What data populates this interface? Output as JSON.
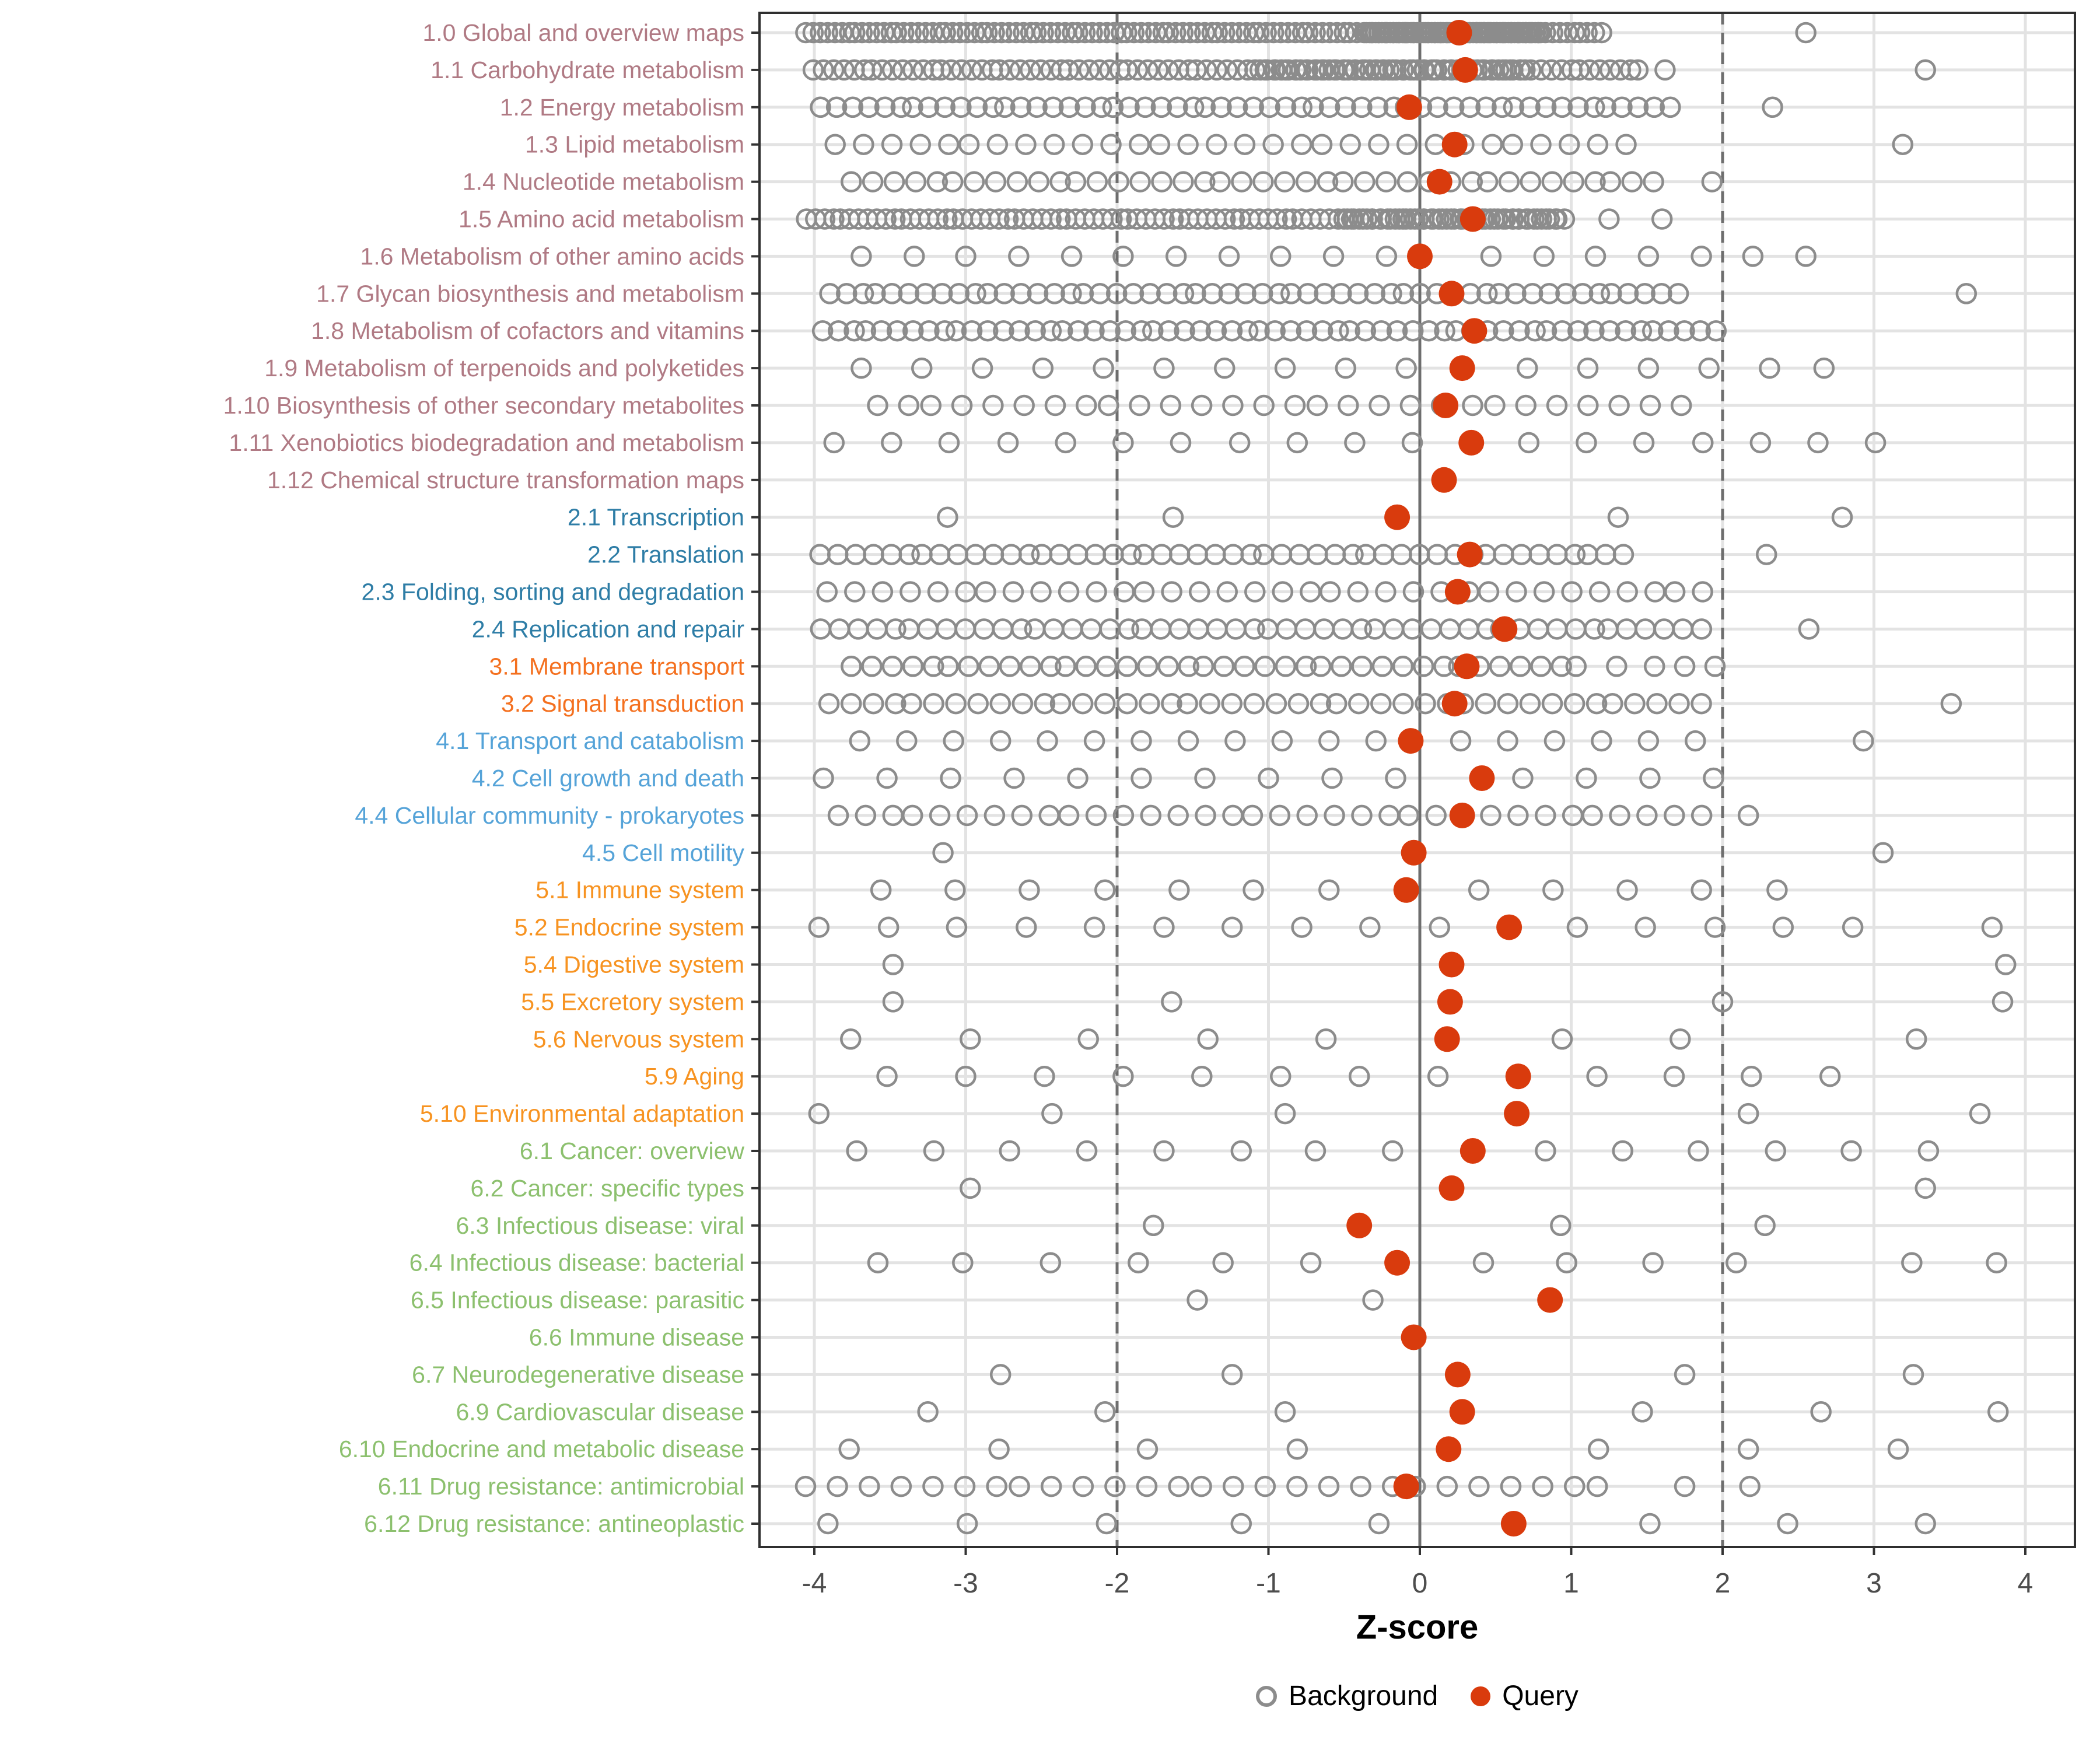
{
  "chart_data": {
    "type": "scatter",
    "title": "",
    "xlabel": "Z-score",
    "ylabel": "",
    "xlim": [
      -4.36,
      4.33
    ],
    "x_ticks": [
      -4,
      -3,
      -2,
      -1,
      0,
      1,
      2,
      3,
      4
    ],
    "grid": "major vertical gridlines at integer z-scores, light horizontal line per category row",
    "legend_position": "bottom",
    "reference_lines": {
      "solid": [
        0
      ],
      "dashed": [
        -2,
        2
      ]
    },
    "colors": {
      "query": "#D93B0D",
      "background_stroke": "#8C8C8C",
      "grid": "#E3E3E3",
      "zero_line": "#6E6E6E",
      "dashed_line": "#6E6E6E",
      "panel_border": "#2F2F2F",
      "tick_mark": "#333333",
      "tick_label": "#4D4D4D",
      "group1": "#B07A84",
      "group2": "#2E7DA6",
      "group3": "#F4701F",
      "group4": "#55A3D8",
      "group5": "#F79321",
      "group6": "#8CC06E"
    },
    "legend": {
      "items": [
        {
          "label": "Background",
          "marker": "open-circle",
          "color": "#8C8C8C"
        },
        {
          "label": "Query",
          "marker": "filled-circle",
          "color": "#D93B0D"
        }
      ]
    },
    "rows": [
      {
        "label": "1.0 Global and overview maps",
        "group": "group1",
        "query": 0.26,
        "bg_spans": [
          [
            -4.05,
            1.2,
            115
          ],
          [
            -0.35,
            0.8,
            60
          ]
        ],
        "bg_points": [
          2.55
        ]
      },
      {
        "label": "1.1 Carbohydrate metabolism",
        "group": "group1",
        "query": 0.3,
        "bg_spans": [
          [
            -4.0,
            1.45,
            85
          ],
          [
            -1.05,
            0.7,
            40
          ]
        ],
        "bg_points": [
          1.62,
          3.34
        ]
      },
      {
        "label": "1.2 Energy metabolism",
        "group": "group1",
        "query": -0.07,
        "bg_spans": [
          [
            -3.95,
            1.65,
            56
          ]
        ],
        "bg_points": [
          2.33
        ]
      },
      {
        "label": "1.3 Lipid metabolism",
        "group": "group1",
        "query": 0.23,
        "bg_spans": [
          [
            -3.85,
            1.35,
            30
          ]
        ],
        "bg_points": [
          3.19
        ]
      },
      {
        "label": "1.4 Nucleotide metabolism",
        "group": "group1",
        "query": 0.13,
        "bg_spans": [
          [
            -3.75,
            1.55,
            40
          ]
        ],
        "bg_points": [
          1.93
        ]
      },
      {
        "label": "1.5 Amino acid metabolism",
        "group": "group1",
        "query": 0.35,
        "bg_spans": [
          [
            -4.05,
            0.95,
            88
          ],
          [
            -0.5,
            0.9,
            30
          ]
        ],
        "bg_points": [
          1.25,
          1.6
        ]
      },
      {
        "label": "1.6 Metabolism of other amino acids",
        "group": "group1",
        "query": 0.0,
        "bg_spans": [],
        "bg_points": [
          -3.69,
          -3.34,
          -3.0,
          -2.65,
          -2.3,
          -1.96,
          -1.61,
          -1.26,
          -0.92,
          -0.57,
          -0.22,
          0.47,
          0.82,
          1.16,
          1.51,
          1.86,
          2.2,
          2.55
        ]
      },
      {
        "label": "1.7 Glycan biosynthesis and metabolism",
        "group": "group1",
        "query": 0.21,
        "bg_spans": [
          [
            -3.9,
            1.7,
            54
          ]
        ],
        "bg_points": [
          3.61
        ]
      },
      {
        "label": "1.8 Metabolism of cofactors and vitamins",
        "group": "group1",
        "query": 0.36,
        "bg_spans": [
          [
            -3.95,
            1.95,
            60
          ]
        ],
        "bg_points": []
      },
      {
        "label": "1.9 Metabolism of terpenoids and polyketides",
        "group": "group1",
        "query": 0.28,
        "bg_spans": [],
        "bg_points": [
          -3.69,
          -3.29,
          -2.89,
          -2.49,
          -2.09,
          -1.69,
          -1.29,
          -0.89,
          -0.49,
          -0.09,
          0.71,
          1.11,
          1.51,
          1.91,
          2.31,
          2.67
        ]
      },
      {
        "label": "1.10 Biosynthesis of other secondary metabolites",
        "group": "group1",
        "query": 0.17,
        "bg_spans": [
          [
            -3.6,
            1.7,
            28
          ]
        ],
        "bg_points": []
      },
      {
        "label": "1.11 Xenobiotics biodegradation and metabolism",
        "group": "group1",
        "query": 0.34,
        "bg_spans": [],
        "bg_points": [
          -3.87,
          -3.49,
          -3.11,
          -2.72,
          -2.34,
          -1.96,
          -1.58,
          -1.19,
          -0.81,
          -0.43,
          -0.05,
          0.72,
          1.1,
          1.48,
          1.87,
          2.25,
          2.63,
          3.01
        ]
      },
      {
        "label": "1.12 Chemical structure transformation maps",
        "group": "group1",
        "query": 0.16,
        "bg_spans": [],
        "bg_points": []
      },
      {
        "label": "2.1 Transcription",
        "group": "group2",
        "query": -0.15,
        "bg_spans": [],
        "bg_points": [
          -3.12,
          -1.63,
          1.31,
          2.79
        ]
      },
      {
        "label": "2.2 Translation",
        "group": "group2",
        "query": 0.33,
        "bg_spans": [
          [
            -3.95,
            1.35,
            48
          ]
        ],
        "bg_points": [
          2.29
        ]
      },
      {
        "label": "2.3 Folding, sorting and degradation",
        "group": "group2",
        "query": 0.25,
        "bg_spans": [
          [
            -3.9,
            1.88,
            34
          ]
        ],
        "bg_points": []
      },
      {
        "label": "2.4 Replication and repair",
        "group": "group2",
        "query": 0.56,
        "bg_spans": [
          [
            -3.95,
            1.85,
            50
          ]
        ],
        "bg_points": [
          2.57
        ]
      },
      {
        "label": "3.1 Membrane transport",
        "group": "group3",
        "query": 0.31,
        "bg_spans": [
          [
            -3.75,
            1.05,
            38
          ]
        ],
        "bg_points": [
          1.3,
          1.55,
          1.75,
          1.95
        ]
      },
      {
        "label": "3.2 Signal transduction",
        "group": "group3",
        "query": 0.23,
        "bg_spans": [
          [
            -3.9,
            1.85,
            42
          ]
        ],
        "bg_points": [
          3.51
        ]
      },
      {
        "label": "4.1 Transport and catabolism",
        "group": "group4",
        "query": -0.06,
        "bg_spans": [],
        "bg_points": [
          -3.7,
          -3.39,
          -3.08,
          -2.77,
          -2.46,
          -2.15,
          -1.84,
          -1.53,
          -1.22,
          -0.91,
          -0.6,
          -0.29,
          0.27,
          0.58,
          0.89,
          1.2,
          1.51,
          1.82,
          2.93
        ]
      },
      {
        "label": "4.2 Cell growth and death",
        "group": "group4",
        "query": 0.41,
        "bg_spans": [],
        "bg_points": [
          -3.94,
          -3.52,
          -3.1,
          -2.68,
          -2.26,
          -1.84,
          -1.42,
          -1.0,
          -0.58,
          -0.16,
          0.68,
          1.1,
          1.52,
          1.94
        ]
      },
      {
        "label": "4.4 Cellular community - prokaryotes",
        "group": "group4",
        "query": 0.28,
        "bg_spans": [
          [
            -3.85,
            1.85,
            34
          ]
        ],
        "bg_points": [
          2.17
        ]
      },
      {
        "label": "4.5 Cell motility",
        "group": "group4",
        "query": -0.04,
        "bg_spans": [],
        "bg_points": [
          -3.15,
          3.06
        ]
      },
      {
        "label": "5.1 Immune system",
        "group": "group5",
        "query": -0.09,
        "bg_spans": [],
        "bg_points": [
          -3.56,
          -3.07,
          -2.58,
          -2.08,
          -1.59,
          -1.1,
          -0.6,
          0.39,
          0.88,
          1.37,
          1.86,
          2.36
        ]
      },
      {
        "label": "5.2 Endocrine system",
        "group": "group5",
        "query": 0.59,
        "bg_spans": [],
        "bg_points": [
          -3.97,
          -3.51,
          -3.06,
          -2.6,
          -2.15,
          -1.69,
          -1.24,
          -0.78,
          -0.33,
          0.13,
          1.04,
          1.49,
          1.95,
          2.4,
          2.86,
          3.78
        ]
      },
      {
        "label": "5.4 Digestive system",
        "group": "group5",
        "query": 0.21,
        "bg_spans": [],
        "bg_points": [
          -3.48,
          3.87
        ]
      },
      {
        "label": "5.5 Excretory system",
        "group": "group5",
        "query": 0.2,
        "bg_spans": [],
        "bg_points": [
          -3.48,
          -1.64,
          2.0,
          3.85
        ]
      },
      {
        "label": "5.6 Nervous system",
        "group": "group5",
        "query": 0.18,
        "bg_spans": [],
        "bg_points": [
          -3.76,
          -2.97,
          -2.19,
          -1.4,
          -0.62,
          0.94,
          1.72,
          3.28
        ]
      },
      {
        "label": "5.9 Aging",
        "group": "group5",
        "query": 0.65,
        "bg_spans": [],
        "bg_points": [
          -3.52,
          -3.0,
          -2.48,
          -1.96,
          -1.44,
          -0.92,
          -0.4,
          0.12,
          1.17,
          1.68,
          2.19,
          2.71
        ]
      },
      {
        "label": "5.10 Environmental adaptation",
        "group": "group5",
        "query": 0.64,
        "bg_spans": [],
        "bg_points": [
          -3.97,
          -2.43,
          -0.89,
          2.17,
          3.7
        ]
      },
      {
        "label": "6.1 Cancer: overview",
        "group": "group6",
        "query": 0.35,
        "bg_spans": [],
        "bg_points": [
          -3.72,
          -3.21,
          -2.71,
          -2.2,
          -1.69,
          -1.18,
          -0.69,
          -0.18,
          0.83,
          1.34,
          1.84,
          2.35,
          2.85,
          3.36
        ]
      },
      {
        "label": "6.2 Cancer: specific types",
        "group": "group6",
        "query": 0.21,
        "bg_spans": [],
        "bg_points": [
          -2.97,
          3.34
        ]
      },
      {
        "label": "6.3 Infectious disease: viral",
        "group": "group6",
        "query": -0.4,
        "bg_spans": [],
        "bg_points": [
          -1.76,
          0.93,
          2.28
        ]
      },
      {
        "label": "6.4 Infectious disease: bacterial",
        "group": "group6",
        "query": -0.15,
        "bg_spans": [],
        "bg_points": [
          -3.58,
          -3.02,
          -2.44,
          -1.86,
          -1.3,
          -0.72,
          0.42,
          0.97,
          1.54,
          2.09,
          3.25,
          3.81
        ]
      },
      {
        "label": "6.5 Infectious disease: parasitic",
        "group": "group6",
        "query": 0.86,
        "bg_spans": [],
        "bg_points": [
          -1.47,
          -0.31
        ]
      },
      {
        "label": "6.6 Immune disease",
        "group": "group6",
        "query": -0.04,
        "bg_spans": [],
        "bg_points": []
      },
      {
        "label": "6.7 Neurodegenerative disease",
        "group": "group6",
        "query": 0.25,
        "bg_spans": [],
        "bg_points": [
          -2.77,
          -1.24,
          1.75,
          3.26
        ]
      },
      {
        "label": "6.9 Cardiovascular disease",
        "group": "group6",
        "query": 0.28,
        "bg_spans": [],
        "bg_points": [
          -3.25,
          -2.08,
          -0.89,
          1.47,
          2.65,
          3.82
        ]
      },
      {
        "label": "6.10 Endocrine and metabolic disease",
        "group": "group6",
        "query": 0.19,
        "bg_spans": [],
        "bg_points": [
          -3.77,
          -2.78,
          -1.8,
          -0.81,
          1.18,
          2.17,
          3.16
        ]
      },
      {
        "label": "6.11 Drug resistance: antimicrobial",
        "group": "group6",
        "query": -0.09,
        "bg_spans": [
          [
            -4.03,
            1.2,
            27
          ]
        ],
        "bg_points": [
          1.75,
          2.18
        ]
      },
      {
        "label": "6.12 Drug resistance: antineoplastic",
        "group": "group6",
        "query": 0.62,
        "bg_spans": [],
        "bg_points": [
          -3.91,
          -2.99,
          -2.07,
          -1.18,
          -0.27,
          1.52,
          2.43,
          3.34
        ]
      }
    ]
  }
}
